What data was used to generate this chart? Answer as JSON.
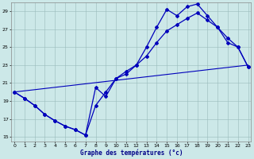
{
  "xlabel": "Graphe des températures (°c)",
  "bg_color": "#cce8e8",
  "line_color": "#0000bb",
  "grid_color": "#99bbbb",
  "ylim": [
    14.5,
    30.0
  ],
  "xlim": [
    -0.3,
    23.3
  ],
  "yticks": [
    15,
    17,
    19,
    21,
    23,
    25,
    27,
    29
  ],
  "xticks": [
    0,
    1,
    2,
    3,
    4,
    5,
    6,
    7,
    8,
    9,
    10,
    11,
    12,
    13,
    14,
    15,
    16,
    17,
    18,
    19,
    20,
    21,
    22,
    23
  ],
  "line1_x": [
    0,
    1,
    2,
    3,
    4,
    5,
    6,
    7,
    8,
    9,
    10,
    11,
    12,
    13,
    14,
    15,
    16,
    17,
    18,
    19,
    20,
    21,
    22,
    23
  ],
  "line1_y": [
    20.0,
    19.3,
    18.5,
    17.5,
    16.8,
    16.2,
    15.8,
    15.2,
    20.5,
    19.5,
    21.5,
    22.3,
    23.0,
    25.0,
    27.2,
    29.2,
    28.5,
    29.5,
    29.8,
    28.5,
    27.2,
    26.0,
    25.0,
    22.8
  ],
  "line2_x": [
    0,
    1,
    2,
    3,
    4,
    5,
    6,
    7,
    8,
    9,
    10,
    11,
    12,
    13,
    14,
    15,
    16,
    17,
    18,
    19,
    20,
    21,
    22,
    23
  ],
  "line2_y": [
    20.0,
    19.3,
    18.5,
    17.5,
    16.8,
    16.2,
    15.8,
    15.2,
    18.5,
    20.0,
    21.5,
    22.0,
    23.0,
    24.0,
    25.5,
    26.8,
    27.5,
    28.2,
    28.8,
    28.0,
    27.2,
    25.5,
    25.0,
    22.8
  ],
  "line3_x": [
    0,
    23
  ],
  "line3_y": [
    20.0,
    23.0
  ],
  "marker": "D",
  "markersize": 2.0,
  "linewidth": 0.9
}
